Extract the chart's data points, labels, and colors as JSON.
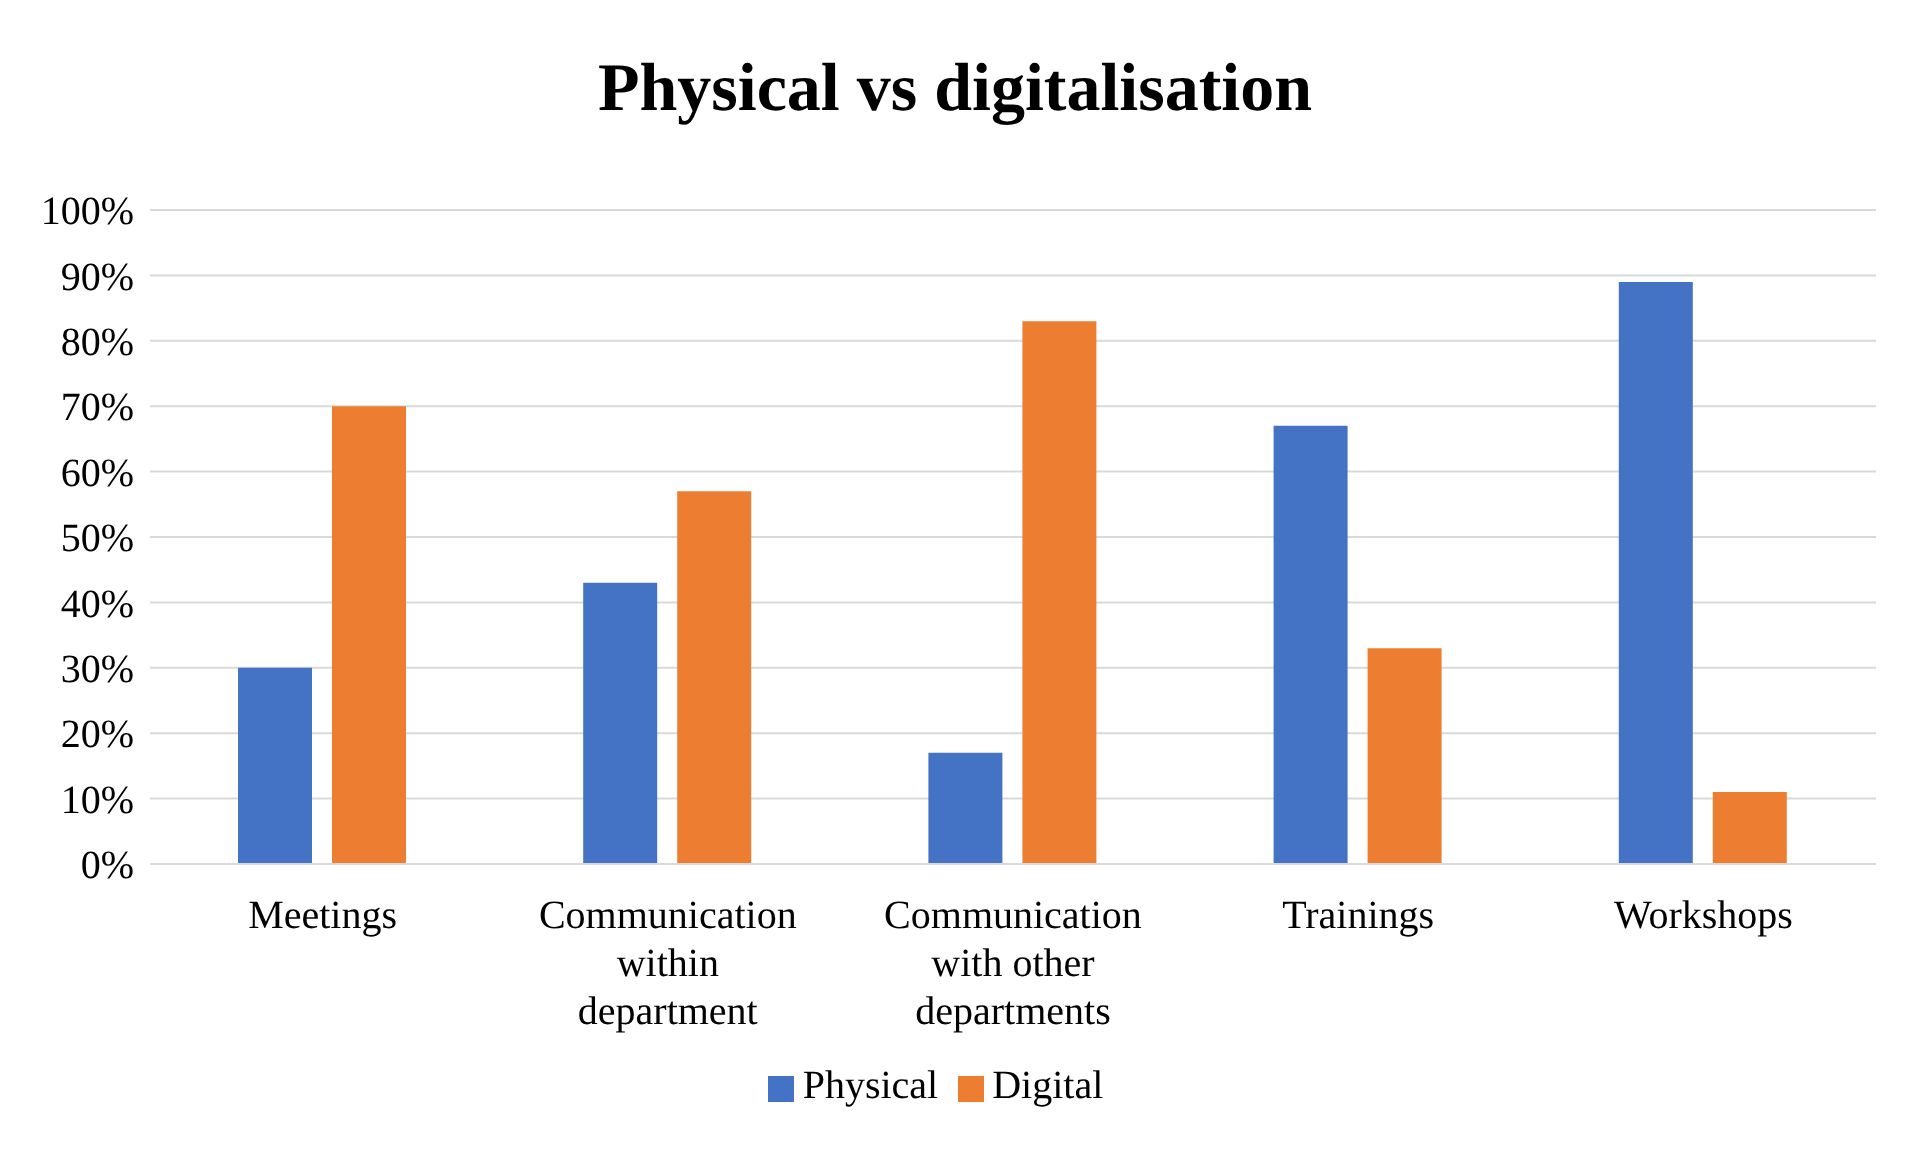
{
  "chart_data": {
    "type": "bar",
    "title": "Physical vs digitalisation",
    "categories": [
      "Meetings",
      "Communication within department",
      "Communication with other departments",
      "Trainings",
      "Workshops"
    ],
    "series": [
      {
        "name": "Physical",
        "color": "#4472c4",
        "values": [
          30,
          43,
          17,
          67,
          89
        ]
      },
      {
        "name": "Digital",
        "color": "#ed7d31",
        "values": [
          70,
          57,
          83,
          33,
          11
        ]
      }
    ],
    "ylim": [
      0,
      100
    ],
    "yticks": [
      {
        "value": 0,
        "label": "0%"
      },
      {
        "value": 10,
        "label": "10%"
      },
      {
        "value": 20,
        "label": "20%"
      },
      {
        "value": 30,
        "label": "30%"
      },
      {
        "value": 40,
        "label": "40%"
      },
      {
        "value": 50,
        "label": "50%"
      },
      {
        "value": 60,
        "label": "60%"
      },
      {
        "value": 70,
        "label": "70%"
      },
      {
        "value": 80,
        "label": "80%"
      },
      {
        "value": 90,
        "label": "90%"
      },
      {
        "value": 100,
        "label": "100%"
      }
    ],
    "grid": "y",
    "legend": "bottom"
  }
}
